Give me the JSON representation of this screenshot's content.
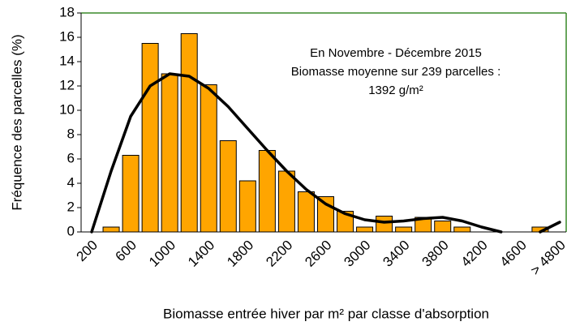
{
  "chart_data": {
    "type": "bar",
    "annotation": [
      "En Novembre - Décembre 2015",
      "Biomasse moyenne sur 239 parcelles :",
      "1392 g/m²"
    ],
    "x_label": "Biomasse entrée hiver par m² par classe d'absorption",
    "y_label": "Fréquence des parcelles (%)",
    "categories": [
      "200",
      null,
      "600",
      null,
      "1000",
      null,
      "1400",
      null,
      "1800",
      null,
      "2200",
      null,
      "2600",
      null,
      "3000",
      null,
      "3400",
      null,
      "3800",
      null,
      "4200",
      null,
      "4600",
      null,
      "> 4800"
    ],
    "series": [
      {
        "type": "bar",
        "color": "#ffa500",
        "values": [
          0,
          0.4,
          6.3,
          15.5,
          13.0,
          16.3,
          12.1,
          7.5,
          4.2,
          6.7,
          5.0,
          3.3,
          2.9,
          1.7,
          0.4,
          1.3,
          0.4,
          1.2,
          0.9,
          0.4,
          0,
          0,
          0,
          0.4,
          0
        ]
      },
      {
        "type": "line",
        "color": "#000000",
        "values": [
          0,
          5.0,
          9.5,
          12.0,
          13.0,
          12.8,
          11.8,
          10.3,
          8.5,
          6.7,
          5.0,
          3.5,
          2.3,
          1.5,
          1.0,
          0.8,
          0.9,
          1.1,
          1.2,
          0.9,
          0.4,
          0,
          null,
          0,
          0.8
        ]
      }
    ],
    "ylim": [
      0,
      18
    ],
    "yticks": [
      0,
      2,
      4,
      6,
      8,
      10,
      12,
      14,
      16,
      18
    ],
    "frame_color": "#3a8a2a"
  }
}
